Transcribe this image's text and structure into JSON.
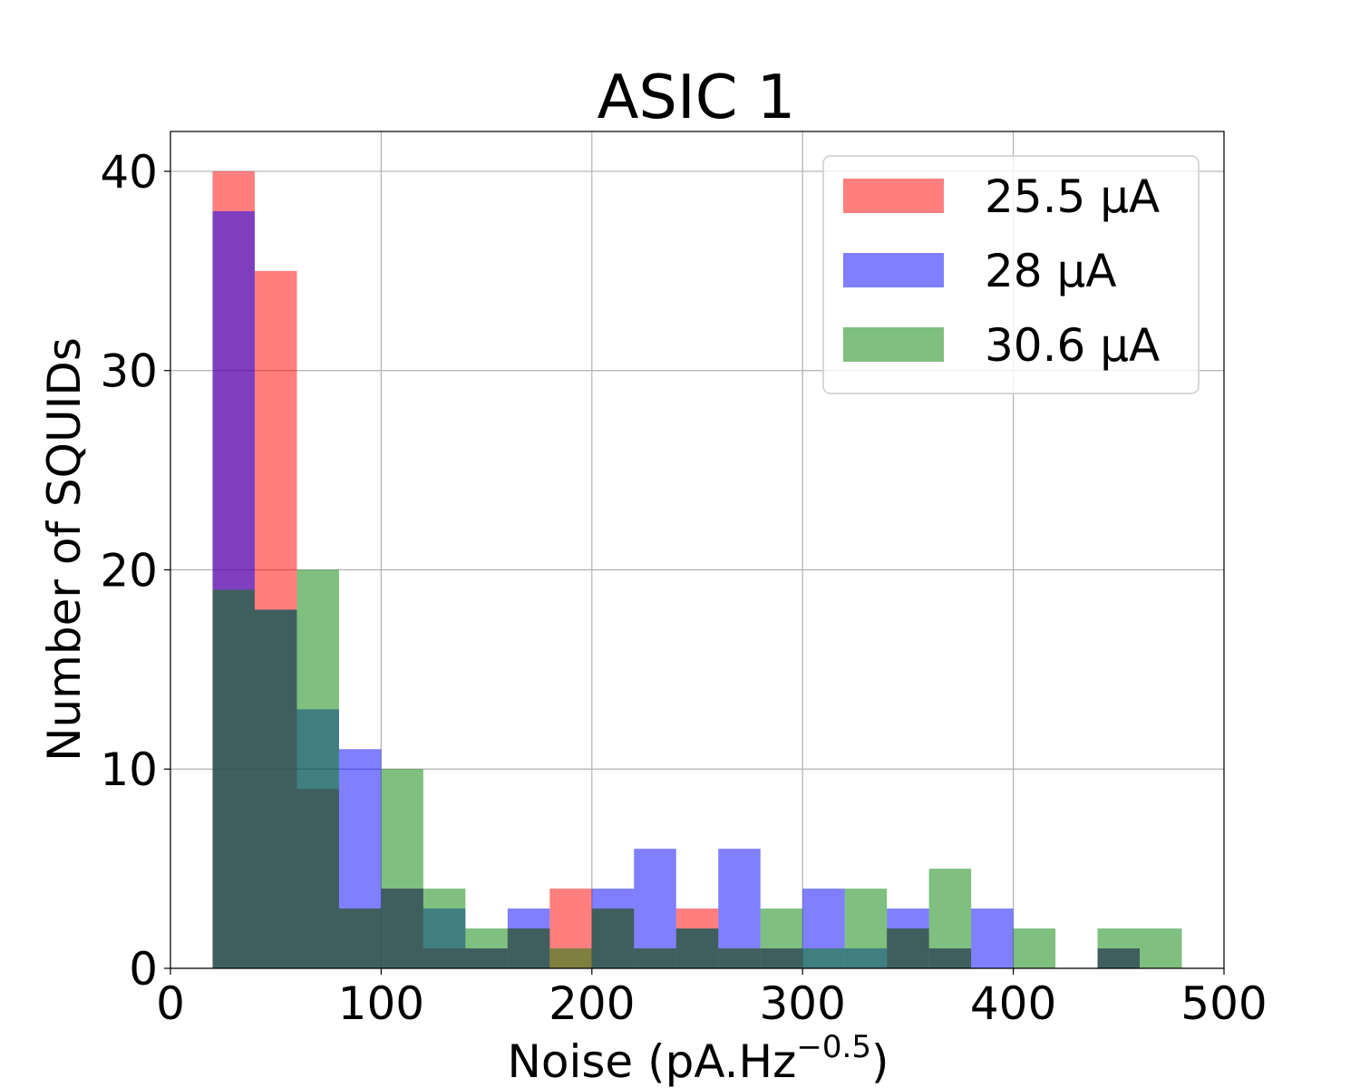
{
  "chart_data": {
    "type": "bar",
    "subtype": "overlapping-histogram",
    "title": "ASIC 1",
    "xlabel": "Noise (pA.Hz",
    "xlabel_exponent": "−0.5",
    "xlabel_suffix": ")",
    "ylabel": "Number of SQUIDs",
    "xlim": [
      0,
      500
    ],
    "ylim": [
      0,
      42
    ],
    "xticks": [
      0,
      100,
      200,
      300,
      400,
      500
    ],
    "yticks": [
      0,
      10,
      20,
      30,
      40
    ],
    "grid": true,
    "legend_position": "top-right",
    "bin_edges": [
      20,
      40,
      60,
      80,
      100,
      120,
      140,
      160,
      180,
      200,
      220,
      240,
      260,
      280,
      300,
      320,
      340,
      360,
      380,
      400,
      420,
      440,
      460,
      480
    ],
    "series": [
      {
        "name": "25.5 µA",
        "color": "#ff0000",
        "opacity": 0.5,
        "values": [
          40,
          35,
          9,
          3,
          4,
          1,
          1,
          2,
          4,
          3,
          1,
          3,
          1,
          1,
          0,
          0,
          2,
          1,
          0,
          0,
          0,
          1,
          0
        ]
      },
      {
        "name": "28 µA",
        "color": "#0000ff",
        "opacity": 0.5,
        "values": [
          38,
          18,
          13,
          11,
          4,
          3,
          1,
          3,
          0,
          4,
          6,
          2,
          6,
          1,
          4,
          1,
          3,
          1,
          3,
          0,
          0,
          1,
          0
        ]
      },
      {
        "name": "30.6 µA",
        "color": "#008000",
        "opacity": 0.5,
        "values": [
          19,
          18,
          20,
          3,
          10,
          4,
          2,
          2,
          1,
          3,
          1,
          2,
          1,
          3,
          1,
          4,
          2,
          5,
          0,
          2,
          0,
          2,
          2
        ]
      }
    ]
  }
}
